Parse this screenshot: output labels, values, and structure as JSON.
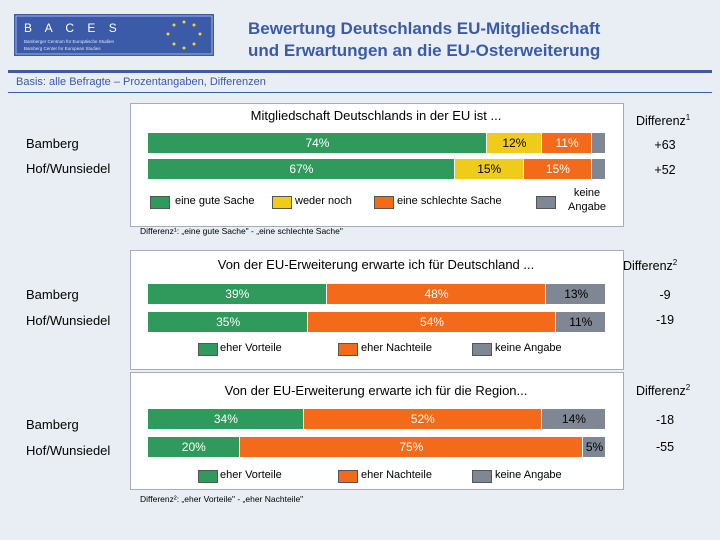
{
  "logo": {
    "name": "B A C E S",
    "line1": "Bamberger Centrum für Europäische Studien",
    "line2": "Bamberg Center for European Studies"
  },
  "header": {
    "title_line1": "Bewertung Deutschlands EU-Mitgliedschaft",
    "title_line2": "und Erwartungen an die EU-Osterweiterung",
    "basis": "Basis: alle Befragte – Prozentangaben, Differenzen"
  },
  "colors": {
    "green": "#2f9a5c",
    "yellow": "#f0cc1a",
    "orange": "#f26a1a",
    "gray": "#7f8794",
    "accent": "#3b5aa8"
  },
  "chart_data": [
    {
      "type": "bar",
      "stacked": true,
      "orientation": "horizontal",
      "title": "Mitgliedschaft Deutschlands in der EU ist ...",
      "categories": [
        "Bamberg",
        "Hof/Wunsiedel"
      ],
      "series": [
        {
          "name": "eine gute Sache",
          "values": [
            74,
            67
          ],
          "labels": [
            "74%",
            "67%"
          ]
        },
        {
          "name": "weder noch",
          "values": [
            12,
            15
          ],
          "labels": [
            "12%",
            "15%"
          ]
        },
        {
          "name": "eine schlechte Sache",
          "values": [
            11,
            15
          ],
          "labels": [
            "11%",
            "15%"
          ]
        },
        {
          "name": "keine Angabe",
          "values": [
            3,
            3
          ],
          "labels": [
            "",
            ""
          ]
        }
      ],
      "diff_header": "Differenz",
      "diff_sup": "1",
      "diff_values": [
        "+63",
        "+52"
      ],
      "footnote": "Differenz¹: „eine gute Sache\" - „eine schlechte Sache\""
    },
    {
      "type": "bar",
      "stacked": true,
      "orientation": "horizontal",
      "title": "Von der EU-Erweiterung erwarte ich für Deutschland ...",
      "categories": [
        "Bamberg",
        "Hof/Wunsiedel"
      ],
      "series": [
        {
          "name": "eher Vorteile",
          "values": [
            39,
            35
          ],
          "labels": [
            "39%",
            "35%"
          ]
        },
        {
          "name": "eher Nachteile",
          "values": [
            48,
            54
          ],
          "labels": [
            "48%",
            "54%"
          ]
        },
        {
          "name": "keine Angabe",
          "values": [
            13,
            11
          ],
          "labels": [
            "13%",
            "11%"
          ]
        }
      ],
      "diff_header": "Differenz",
      "diff_sup": "2",
      "diff_values": [
        "-9",
        "-19"
      ]
    },
    {
      "type": "bar",
      "stacked": true,
      "orientation": "horizontal",
      "title": "Von der EU-Erweiterung erwarte ich für die Region...",
      "categories": [
        "Bamberg",
        "Hof/Wunsiedel"
      ],
      "series": [
        {
          "name": "eher Vorteile",
          "values": [
            34,
            20
          ],
          "labels": [
            "34%",
            "20%"
          ]
        },
        {
          "name": "eher Nachteile",
          "values": [
            52,
            75
          ],
          "labels": [
            "52%",
            "75%"
          ]
        },
        {
          "name": "keine Angabe",
          "values": [
            14,
            5
          ],
          "labels": [
            "14%",
            "5%"
          ]
        }
      ],
      "diff_header": "Differenz",
      "diff_sup": "2",
      "diff_values": [
        "-18",
        "-55"
      ],
      "footnote": "Differenz²: „eher Vorteile\" - „eher Nachteile\""
    }
  ]
}
